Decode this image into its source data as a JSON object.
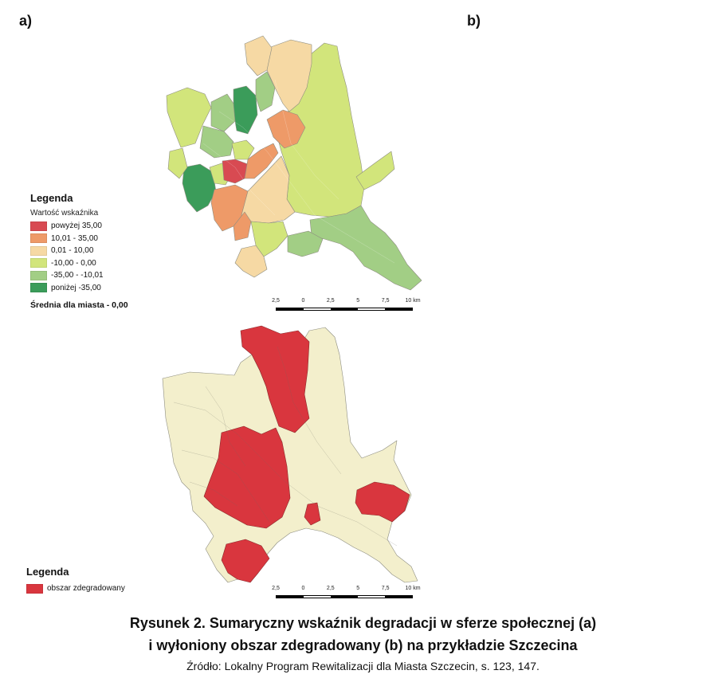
{
  "panels": {
    "a_label": "a)",
    "b_label": "b)"
  },
  "map_a": {
    "legend": {
      "title": "Legenda",
      "subtitle": "Wartość wskaźnika",
      "classes": [
        {
          "label": "powyżej 35,00",
          "color": "#d84a52"
        },
        {
          "label": "10,01 - 35,00",
          "color": "#ee9a68"
        },
        {
          "label": "0,01 - 10,00",
          "color": "#f6d9a4"
        },
        {
          "label": "-10,00 - 0,00",
          "color": "#d2e57b"
        },
        {
          "label": "-35,00 - -10,01",
          "color": "#a2ce85"
        },
        {
          "label": "poniżej -35,00",
          "color": "#3b9c5a"
        }
      ],
      "mean_label": "Średnia dla miasta - 0,00"
    },
    "scale": {
      "ticks": [
        "2,5",
        "0",
        "2,5",
        "5",
        "7,5",
        "10 km"
      ]
    }
  },
  "map_b": {
    "legend": {
      "title": "Legenda",
      "classes": [
        {
          "label": "obszar zdegradowany",
          "color": "#d9363e"
        }
      ]
    },
    "base_color": "#f3efcc",
    "scale": {
      "ticks": [
        "2,5",
        "0",
        "2,5",
        "5",
        "7,5",
        "10 km"
      ]
    }
  },
  "caption": {
    "line1": "Rysunek 2. Sumaryczny wskaźnik degradacji w sferze społecznej (a)",
    "line2": "i wyłoniony obszar zdegradowany (b) na przykładzie Szczecina",
    "source": "Źródło: Lokalny Program Rewitalizacji dla Miasta Szczecin, s. 123, 147."
  }
}
